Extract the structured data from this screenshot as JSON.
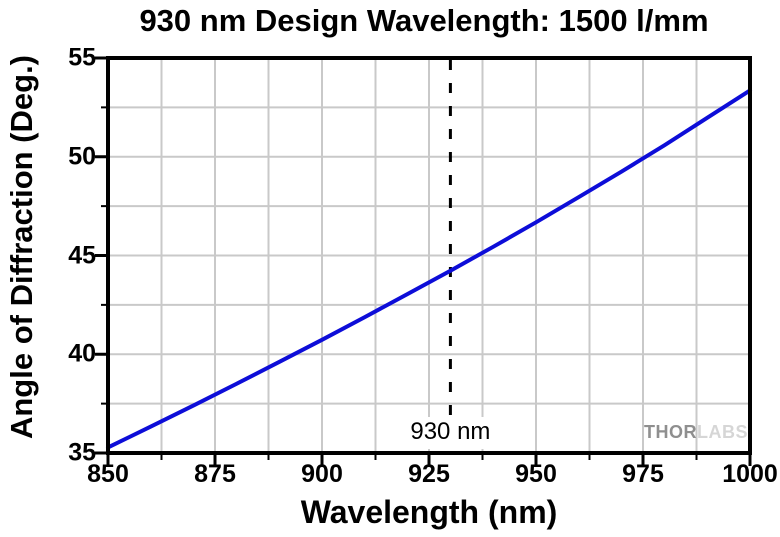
{
  "page": {
    "background": "#ffffff"
  },
  "watermark": {
    "thor": "THOR",
    "labs": "LABS"
  },
  "chart_data": {
    "type": "line",
    "title": "930 nm Design Wavelength: 1500 l/mm",
    "xlabel": "Wavelength (nm)",
    "ylabel": "Angle of Diffraction (Deg.)",
    "xlim": [
      850,
      1000
    ],
    "ylim": [
      35,
      55
    ],
    "x_major_ticks": [
      "850",
      "875",
      "900",
      "925",
      "950",
      "975",
      "1000"
    ],
    "y_major_ticks": [
      "35",
      "40",
      "45",
      "50",
      "55"
    ],
    "x_minor_step": 12.5,
    "y_minor_step": 2.5,
    "grid": true,
    "legend": "none",
    "colors": {
      "grid": "#c9c9c9",
      "curve": "#0d0dd8",
      "axis": "#000000",
      "annotation_line": "#000000"
    },
    "series": [
      {
        "name": "angle-of-diffraction",
        "color": "#0d0dd8",
        "x": [
          850,
          860,
          870,
          880,
          890,
          900,
          910,
          920,
          930,
          940,
          950,
          960,
          970,
          980,
          990,
          1000
        ],
        "y": [
          35.28,
          36.34,
          37.41,
          38.5,
          39.61,
          40.73,
          41.88,
          43.05,
          44.23,
          45.44,
          46.68,
          47.96,
          49.25,
          50.58,
          51.97,
          53.36
        ]
      }
    ],
    "annotation": {
      "label": "930 nm",
      "x": 930,
      "style": "dashed-vertical-line"
    }
  }
}
